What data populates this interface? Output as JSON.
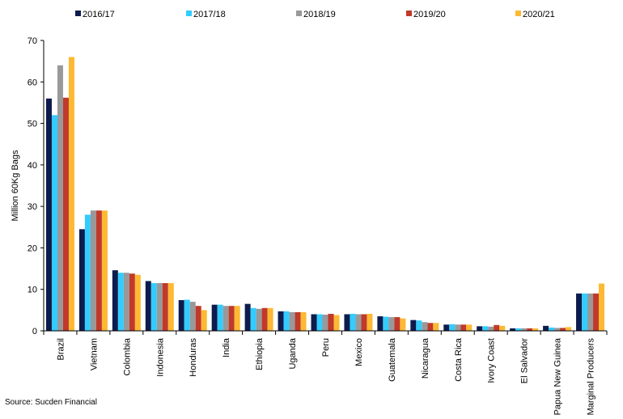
{
  "chart_data": {
    "type": "bar",
    "ylabel": "Million 60Kg Bags",
    "ylim": [
      0,
      70
    ],
    "yticks": [
      0,
      10,
      20,
      30,
      40,
      50,
      60,
      70
    ],
    "legend_position": "top",
    "grid": false,
    "categories": [
      "Brazil",
      "Vietnam",
      "Colombia",
      "Indonesia",
      "Honduras",
      "India",
      "Ethiopia",
      "Uganda",
      "Peru",
      "Mexico",
      "Guatemala",
      "Nicaragua",
      "Costa Rica",
      "Ivory Coast",
      "El Salvador",
      "Papua New Guinea",
      "Marginal Producers"
    ],
    "series": [
      {
        "name": "2016/17",
        "color": "#0d1c4d",
        "values": [
          56,
          24.5,
          14.6,
          12.0,
          7.4,
          6.3,
          6.5,
          4.7,
          4.0,
          4.0,
          3.5,
          2.6,
          1.5,
          1.1,
          0.6,
          1.2,
          9.0
        ]
      },
      {
        "name": "2017/18",
        "color": "#33ccff",
        "values": [
          52,
          28,
          14.0,
          11.5,
          7.5,
          6.3,
          5.5,
          4.7,
          4.0,
          4.1,
          3.4,
          2.5,
          1.6,
          1.1,
          0.6,
          0.8,
          9.0
        ]
      },
      {
        "name": "2018/19",
        "color": "#999999",
        "values": [
          64,
          29,
          14.0,
          11.5,
          7.0,
          6.0,
          5.3,
          4.5,
          3.9,
          4.0,
          3.3,
          2.1,
          1.5,
          1.0,
          0.6,
          0.7,
          9.0
        ]
      },
      {
        "name": "2019/20",
        "color": "#c0392b",
        "values": [
          56.2,
          29,
          13.8,
          11.5,
          6.0,
          6.0,
          5.5,
          4.5,
          4.1,
          4.0,
          3.3,
          1.9,
          1.5,
          1.4,
          0.6,
          0.7,
          9.0
        ]
      },
      {
        "name": "2020/21",
        "color": "#fdb933",
        "values": [
          66,
          29,
          13.5,
          11.5,
          5.0,
          6.0,
          5.5,
          4.5,
          3.8,
          4.1,
          3.0,
          1.9,
          1.5,
          1.2,
          0.6,
          0.9,
          11.4
        ]
      }
    ]
  },
  "source": "Source: Sucden Financial"
}
